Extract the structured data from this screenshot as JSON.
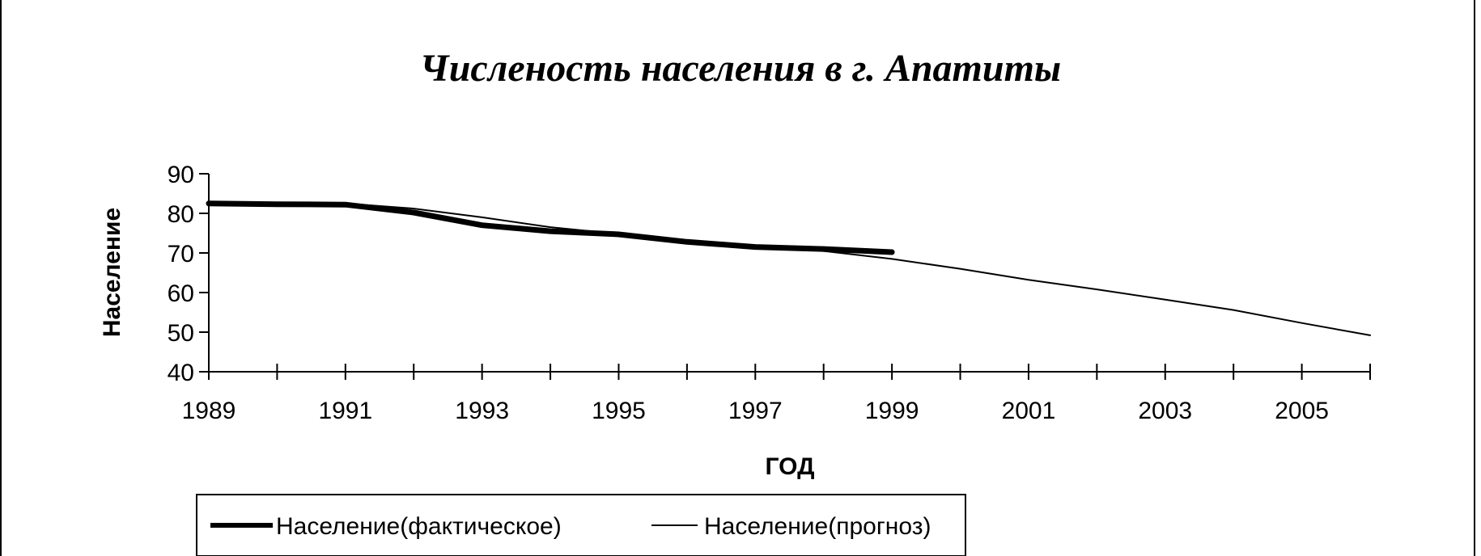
{
  "chart_data": {
    "type": "line",
    "title": "Численость населения в г. Апатиты",
    "xlabel": "ГОД",
    "ylabel": "Население",
    "xlim": [
      1989,
      2006
    ],
    "ylim": [
      40,
      90
    ],
    "x_ticks": [
      1989,
      1990,
      1991,
      1992,
      1993,
      1994,
      1995,
      1996,
      1997,
      1998,
      1999,
      2000,
      2001,
      2002,
      2003,
      2004,
      2005,
      2006
    ],
    "x_tick_labels": [
      "1989",
      "1991",
      "1993",
      "1995",
      "1997",
      "1999",
      "2001",
      "2003",
      "2005"
    ],
    "x_tick_label_values": [
      1989,
      1991,
      1993,
      1995,
      1997,
      1999,
      2001,
      2003,
      2005
    ],
    "y_ticks": [
      40,
      50,
      60,
      70,
      80,
      90
    ],
    "y_tick_labels": [
      "40",
      "50",
      "60",
      "70",
      "80",
      "90"
    ],
    "grid": false,
    "legend_position": "bottom-left",
    "series": [
      {
        "name": "Население(фактическое)",
        "color": "#000000",
        "style": "thick",
        "x": [
          1989,
          1990,
          1991,
          1992,
          1993,
          1994,
          1995,
          1996,
          1997,
          1998,
          1999
        ],
        "y": [
          82.5,
          82.3,
          82.2,
          80.2,
          77.0,
          75.5,
          74.7,
          72.8,
          71.5,
          71.0,
          70.2
        ]
      },
      {
        "name": "Население(прогноз)",
        "color": "#000000",
        "style": "thin",
        "x": [
          1989,
          1990,
          1991,
          1992,
          1993,
          1994,
          1995,
          1996,
          1997,
          1998,
          1999,
          2000,
          2001,
          2002,
          2003,
          2004,
          2005,
          2006
        ],
        "y": [
          82.5,
          82.3,
          82.5,
          81.2,
          79.0,
          76.5,
          74.8,
          73.0,
          71.5,
          70.5,
          68.5,
          66.0,
          63.2,
          60.8,
          58.2,
          55.6,
          52.3,
          49.2
        ]
      }
    ]
  }
}
